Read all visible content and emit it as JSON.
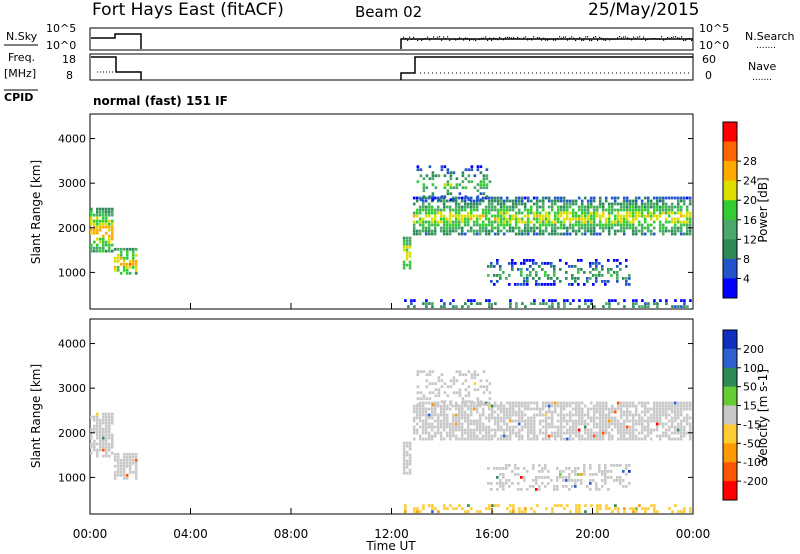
{
  "header": {
    "station": "Fort Hays East (fitACF)",
    "beam": "Beam 02",
    "date": "25/May/2015"
  },
  "params": {
    "nsky_label": "N.Sky",
    "nsearch_label": "N.Search",
    "freq_label_1": "Freq.",
    "freq_label_2": "[MHz]",
    "nave_label": "Nave",
    "cpid_label": "CPID",
    "cpid_value": "normal (fast) 151 IF",
    "noise_ticks": [
      "10^5",
      "10^0"
    ],
    "freq_ticks": [
      "18",
      "8"
    ],
    "nave_ticks": [
      "60",
      "0"
    ],
    "legend_marker": "......."
  },
  "chart_data": [
    {
      "type": "heatmap",
      "panel": "power",
      "xlabel": "",
      "ylabel": "Slant Range [km]",
      "ylim": [
        180,
        4550
      ],
      "xlim": [
        0,
        24
      ],
      "yticks": [
        "1000",
        "2000",
        "3000",
        "4000"
      ],
      "colorbar": {
        "label": "Power [dB]",
        "ticks": [
          "4",
          "8",
          "12",
          "16",
          "20",
          "24",
          "28"
        ],
        "colors": [
          "#0000ff",
          "#2255cc",
          "#2e8b57",
          "#4aa86a",
          "#33cc33",
          "#dddd00",
          "#ffaa00",
          "#ff6600",
          "#ff0000"
        ]
      },
      "regions": [
        {
          "t0": 0.0,
          "t1": 0.95,
          "r0": 1450,
          "r1": 2450,
          "value": 16
        },
        {
          "t0": 0.95,
          "t1": 1.95,
          "r0": 950,
          "r1": 1550,
          "value": 16
        },
        {
          "t0": 12.45,
          "t1": 12.85,
          "r0": 1050,
          "r1": 1800,
          "value": 16
        },
        {
          "t0": 12.85,
          "t1": 24.0,
          "r0": 1800,
          "r1": 2700,
          "value": 12
        },
        {
          "t0": 13.0,
          "t1": 16.0,
          "r0": 2600,
          "r1": 3400,
          "value": 8
        },
        {
          "t0": 15.8,
          "t1": 21.5,
          "r0": 700,
          "r1": 1300,
          "value": 6
        },
        {
          "t0": 12.5,
          "t1": 24.0,
          "r0": 200,
          "r1": 400,
          "value": 6
        }
      ]
    },
    {
      "type": "heatmap",
      "panel": "velocity",
      "xlabel": "Time UT",
      "ylabel": "Slant Range [km]",
      "ylim": [
        180,
        4550
      ],
      "xlim": [
        0,
        24
      ],
      "yticks": [
        "1000",
        "2000",
        "3000",
        "4000"
      ],
      "xticks": [
        "00:00",
        "04:00",
        "08:00",
        "12:00",
        "16:00",
        "20:00",
        "00:00"
      ],
      "colorbar": {
        "label": "Velocity [m s-1]",
        "ticks": [
          "200",
          "100",
          "50",
          "15",
          "-15",
          "-50",
          "-100",
          "-200"
        ],
        "colors": [
          "#1030c0",
          "#3060d0",
          "#2e8b57",
          "#66cc33",
          "#c8c8c8",
          "#ffcc33",
          "#ff9900",
          "#ff5500",
          "#ff0000"
        ]
      },
      "regions": [
        {
          "t0": 0.0,
          "t1": 0.95,
          "r0": 1450,
          "r1": 2450,
          "value": 0
        },
        {
          "t0": 0.95,
          "t1": 1.95,
          "r0": 950,
          "r1": 1550,
          "value": 0
        },
        {
          "t0": 12.45,
          "t1": 12.85,
          "r0": 1050,
          "r1": 1800,
          "value": 0
        },
        {
          "t0": 12.85,
          "t1": 24.0,
          "r0": 1800,
          "r1": 2700,
          "value": 0
        },
        {
          "t0": 13.0,
          "t1": 16.0,
          "r0": 2600,
          "r1": 3400,
          "value": 0
        },
        {
          "t0": 15.8,
          "t1": 21.5,
          "r0": 700,
          "r1": 1300,
          "value": 0
        },
        {
          "t0": 12.5,
          "t1": 24.0,
          "r0": 200,
          "r1": 400,
          "value": -40
        }
      ]
    }
  ]
}
